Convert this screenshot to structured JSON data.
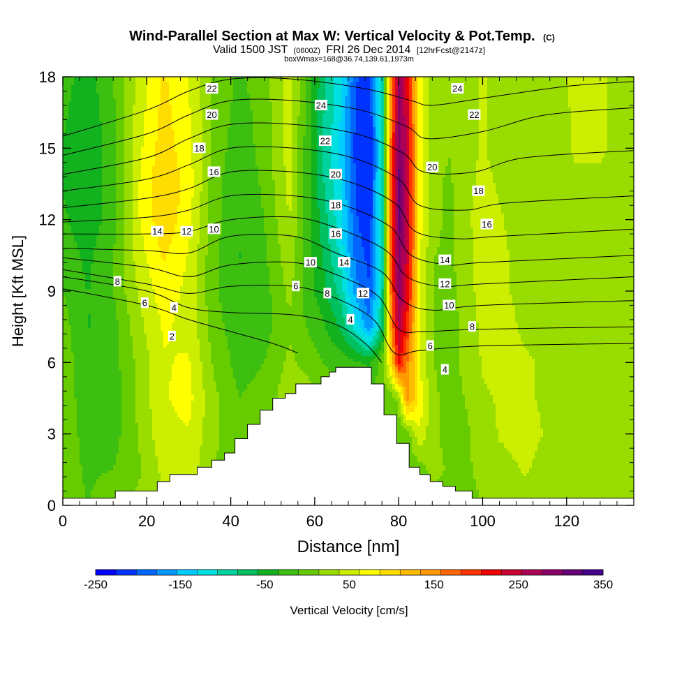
{
  "chart_data": {
    "type": "heatmap",
    "title": "Wind-Parallel Section at Max W: Vertical Velocity & Pot.Temp.",
    "title_unit": "(C)",
    "subtitle_valid": "Valid 1500 JST",
    "subtitle_utc": "(0600Z)",
    "subtitle_date": "FRI 26 Dec 2014",
    "subtitle_fcst": "[12hrFcst@2147z]",
    "subtitle_box": "boxWmax=168@36.74,139.61,1973m",
    "xlabel": "Distance [nm]",
    "ylabel": "Height [Kft MSL]",
    "xlim": [
      0,
      136
    ],
    "ylim": [
      0,
      18
    ],
    "x_ticks": [
      "0",
      "20",
      "40",
      "60",
      "80",
      "100",
      "120"
    ],
    "y_ticks": [
      "0",
      "3",
      "6",
      "9",
      "12",
      "15",
      "18"
    ],
    "colorbar": {
      "label": "Vertical Velocity [cm/s]",
      "range": [
        -250,
        350
      ],
      "tick_labels": [
        "-250",
        "-150",
        "-50",
        "50",
        "150",
        "250",
        "350"
      ],
      "colors": [
        "#0000ff",
        "#0033ff",
        "#0066ff",
        "#0099ff",
        "#00ccff",
        "#00e0e0",
        "#00d2a0",
        "#00c060",
        "#12b21e",
        "#3cbf10",
        "#66cc00",
        "#99dd00",
        "#ccee00",
        "#ffff00",
        "#ffdd00",
        "#ffbb00",
        "#ff9900",
        "#ff6600",
        "#ff3300",
        "#ee0000",
        "#cc0033",
        "#aa0055",
        "#880066",
        "#660077",
        "#440088"
      ]
    },
    "velocity_field": {
      "x": [
        0,
        6,
        12,
        18,
        24,
        30,
        36,
        42,
        48,
        54,
        58,
        62,
        66,
        70,
        73,
        76,
        78,
        80,
        82,
        85,
        88,
        92,
        96,
        100,
        104,
        110,
        116,
        122,
        128,
        136
      ],
      "y": [
        0,
        1.5,
        3,
        4.5,
        6,
        7.5,
        9,
        10.5,
        12,
        13.5,
        15,
        16.5,
        18
      ],
      "values": [
        [
          5,
          -10,
          10,
          20,
          35,
          30,
          10,
          -15,
          -20,
          10,
          10,
          0,
          0,
          0,
          0,
          0,
          0,
          0,
          0,
          0,
          0,
          0,
          5,
          15,
          25,
          30,
          25,
          25,
          25,
          15
        ],
        [
          5,
          -15,
          -10,
          10,
          45,
          50,
          15,
          -10,
          -15,
          15,
          20,
          0,
          0,
          0,
          0,
          0,
          0,
          0,
          0,
          0,
          25,
          10,
          10,
          20,
          30,
          40,
          30,
          25,
          25,
          20
        ],
        [
          5,
          -20,
          -20,
          15,
          55,
          60,
          20,
          -5,
          -10,
          20,
          25,
          0,
          0,
          0,
          0,
          0,
          0,
          0,
          0,
          60,
          20,
          5,
          10,
          25,
          40,
          45,
          35,
          25,
          30,
          25
        ],
        [
          5,
          -25,
          -25,
          20,
          60,
          70,
          20,
          -10,
          0,
          30,
          30,
          10,
          0,
          0,
          0,
          0,
          0,
          20,
          150,
          80,
          20,
          5,
          15,
          35,
          40,
          40,
          35,
          25,
          30,
          30
        ],
        [
          5,
          -30,
          -20,
          20,
          60,
          65,
          10,
          -20,
          -10,
          20,
          5,
          -10,
          -20,
          -30,
          -40,
          0,
          90,
          220,
          160,
          60,
          15,
          5,
          20,
          40,
          45,
          40,
          35,
          30,
          35,
          30
        ],
        [
          0,
          -35,
          -20,
          30,
          65,
          55,
          0,
          -25,
          -20,
          10,
          -10,
          -30,
          -60,
          -120,
          -170,
          -80,
          130,
          260,
          200,
          60,
          15,
          5,
          20,
          45,
          45,
          35,
          35,
          30,
          35,
          30
        ],
        [
          -10,
          -35,
          -10,
          40,
          75,
          55,
          -5,
          -30,
          -20,
          20,
          -20,
          -50,
          -90,
          -170,
          -200,
          -100,
          150,
          290,
          230,
          70,
          15,
          5,
          25,
          50,
          40,
          35,
          35,
          35,
          35,
          30
        ],
        [
          -20,
          -40,
          -10,
          50,
          90,
          60,
          -5,
          -35,
          -15,
          30,
          -20,
          -60,
          -110,
          -190,
          -210,
          -110,
          160,
          300,
          240,
          70,
          15,
          10,
          25,
          50,
          40,
          35,
          35,
          35,
          35,
          30
        ],
        [
          -30,
          -50,
          -20,
          60,
          105,
          70,
          0,
          -30,
          -10,
          40,
          -20,
          -70,
          -120,
          -200,
          -220,
          -110,
          160,
          310,
          250,
          70,
          20,
          10,
          30,
          55,
          40,
          30,
          30,
          35,
          35,
          30
        ],
        [
          -35,
          -55,
          -20,
          60,
          110,
          75,
          0,
          -30,
          -5,
          45,
          -20,
          -80,
          -125,
          -210,
          -220,
          -110,
          160,
          310,
          250,
          70,
          20,
          10,
          30,
          45,
          35,
          25,
          30,
          35,
          35,
          30
        ],
        [
          -35,
          -55,
          -20,
          55,
          100,
          70,
          5,
          -25,
          0,
          50,
          -20,
          -85,
          -130,
          -215,
          -225,
          -110,
          150,
          300,
          245,
          70,
          25,
          15,
          30,
          40,
          30,
          20,
          30,
          40,
          40,
          30
        ],
        [
          -30,
          -50,
          -15,
          50,
          95,
          65,
          10,
          -20,
          0,
          50,
          -15,
          -80,
          -125,
          -210,
          -220,
          -105,
          140,
          290,
          240,
          70,
          25,
          15,
          30,
          40,
          30,
          20,
          30,
          40,
          40,
          30
        ],
        [
          -25,
          -45,
          -10,
          45,
          90,
          60,
          10,
          -15,
          5,
          50,
          -10,
          -75,
          -120,
          -200,
          -210,
          -100,
          130,
          280,
          230,
          70,
          25,
          15,
          30,
          40,
          30,
          25,
          35,
          40,
          40,
          30
        ]
      ]
    },
    "terrain": {
      "x": [
        0,
        12.5,
        12.5,
        22.5,
        22.5,
        25.5,
        25.5,
        32,
        32,
        35.5,
        35.5,
        38.5,
        38.5,
        41,
        41,
        44,
        44,
        47,
        47,
        50,
        50,
        53,
        53,
        55.5,
        55.5,
        58.5,
        58.5,
        61.5,
        61.5,
        63.5,
        63.5,
        65,
        65,
        66.5,
        66.5,
        73.5,
        73.5,
        76.5,
        76.5,
        79.5,
        79.5,
        82.5,
        82.5,
        85,
        85,
        87.5,
        87.5,
        90.5,
        90.5,
        93.5,
        93.5,
        97.5,
        97.5,
        120,
        120,
        136
      ],
      "y": [
        0.3,
        0.3,
        0.6,
        0.6,
        1,
        1,
        1.3,
        1.3,
        1.6,
        1.6,
        1.9,
        1.9,
        2.2,
        2.2,
        2.8,
        2.8,
        3.4,
        3.4,
        4,
        4,
        4.5,
        4.5,
        4.7,
        4.7,
        5.1,
        5.1,
        5.1,
        5.1,
        5.4,
        5.4,
        5.6,
        5.6,
        5.8,
        5.8,
        5.8,
        5.8,
        5.1,
        5.1,
        3.8,
        3.8,
        2.6,
        2.6,
        1.6,
        1.6,
        1.3,
        1.3,
        1,
        1,
        0.8,
        0.8,
        0.6,
        0.6,
        0.3,
        0.3,
        0.3,
        0.3
      ]
    },
    "isentropes": [
      {
        "level": 2,
        "points": [
          [
            0,
            9.1
          ],
          [
            20,
            8.4
          ],
          [
            30,
            7.8
          ],
          [
            40,
            7.3
          ],
          [
            50,
            6.8
          ],
          [
            56,
            6.4
          ]
        ]
      },
      {
        "level": 4,
        "points": [
          [
            0,
            9.6
          ],
          [
            20,
            9.0
          ],
          [
            30,
            8.3
          ],
          [
            40,
            8.1
          ],
          [
            55,
            8.0
          ],
          [
            65,
            7.6
          ],
          [
            72,
            6.8
          ],
          [
            76,
            6.0
          ]
        ]
      },
      {
        "level": 6,
        "points": [
          [
            0,
            9.9
          ],
          [
            20,
            9.3
          ],
          [
            30,
            8.9
          ],
          [
            40,
            9.2
          ],
          [
            55,
            9.2
          ],
          [
            65,
            8.7
          ],
          [
            74,
            7.8
          ],
          [
            79,
            6.4
          ],
          [
            85,
            6.5
          ],
          [
            100,
            6.7
          ],
          [
            136,
            6.8
          ]
        ]
      },
      {
        "level": 8,
        "points": [
          [
            0,
            10.4
          ],
          [
            20,
            10.0
          ],
          [
            30,
            9.6
          ],
          [
            40,
            10.1
          ],
          [
            55,
            10.2
          ],
          [
            65,
            9.7
          ],
          [
            75,
            8.8
          ],
          [
            80,
            7.4
          ],
          [
            86,
            7.3
          ],
          [
            100,
            7.4
          ],
          [
            136,
            7.5
          ]
        ]
      },
      {
        "level": 10,
        "points": [
          [
            0,
            10.8
          ],
          [
            20,
            10.7
          ],
          [
            30,
            10.6
          ],
          [
            40,
            11.3
          ],
          [
            55,
            11.3
          ],
          [
            65,
            10.6
          ],
          [
            76,
            9.8
          ],
          [
            81,
            8.6
          ],
          [
            88,
            8.2
          ],
          [
            100,
            8.4
          ],
          [
            136,
            8.6
          ]
        ]
      },
      {
        "level": 12,
        "points": [
          [
            0,
            11.4
          ],
          [
            20,
            11.4
          ],
          [
            30,
            11.5
          ],
          [
            40,
            12.0
          ],
          [
            55,
            12.1
          ],
          [
            66,
            11.6
          ],
          [
            77,
            10.7
          ],
          [
            82,
            9.6
          ],
          [
            90,
            9.2
          ],
          [
            100,
            9.3
          ],
          [
            136,
            9.6
          ]
        ]
      },
      {
        "level": 14,
        "points": [
          [
            0,
            11.9
          ],
          [
            20,
            12.1
          ],
          [
            30,
            12.4
          ],
          [
            40,
            13.0
          ],
          [
            55,
            13.0
          ],
          [
            67,
            12.6
          ],
          [
            78,
            11.7
          ],
          [
            83,
            10.5
          ],
          [
            92,
            10.1
          ],
          [
            100,
            10.2
          ],
          [
            136,
            10.5
          ]
        ]
      },
      {
        "level": 16,
        "points": [
          [
            0,
            12.5
          ],
          [
            20,
            12.9
          ],
          [
            30,
            13.3
          ],
          [
            40,
            14.0
          ],
          [
            55,
            14.0
          ],
          [
            68,
            13.6
          ],
          [
            79,
            12.7
          ],
          [
            84,
            11.5
          ],
          [
            94,
            11.2
          ],
          [
            104,
            11.3
          ],
          [
            136,
            11.6
          ]
        ]
      },
      {
        "level": 18,
        "points": [
          [
            0,
            13.2
          ],
          [
            20,
            13.7
          ],
          [
            30,
            14.3
          ],
          [
            40,
            15.0
          ],
          [
            55,
            15.0
          ],
          [
            69,
            14.6
          ],
          [
            80,
            13.7
          ],
          [
            85,
            12.6
          ],
          [
            96,
            12.4
          ],
          [
            106,
            12.7
          ],
          [
            136,
            13.0
          ]
        ]
      },
      {
        "level": 20,
        "points": [
          [
            0,
            13.9
          ],
          [
            20,
            14.6
          ],
          [
            30,
            15.4
          ],
          [
            40,
            16.0
          ],
          [
            55,
            16.0
          ],
          [
            70,
            15.6
          ],
          [
            81,
            14.8
          ],
          [
            86,
            14.0
          ],
          [
            98,
            14.0
          ],
          [
            110,
            14.6
          ],
          [
            136,
            14.9
          ]
        ]
      },
      {
        "level": 22,
        "points": [
          [
            0,
            14.7
          ],
          [
            20,
            15.6
          ],
          [
            30,
            16.4
          ],
          [
            40,
            17.0
          ],
          [
            55,
            17.0
          ],
          [
            71,
            16.6
          ],
          [
            82,
            15.9
          ],
          [
            87,
            15.4
          ],
          [
            100,
            15.7
          ],
          [
            115,
            16.4
          ],
          [
            136,
            16.7
          ]
        ]
      },
      {
        "level": 24,
        "points": [
          [
            0,
            15.5
          ],
          [
            20,
            16.6
          ],
          [
            30,
            17.4
          ],
          [
            40,
            17.9
          ],
          [
            55,
            17.9
          ],
          [
            72,
            17.5
          ],
          [
            83,
            17.0
          ],
          [
            88,
            16.8
          ],
          [
            100,
            17.1
          ],
          [
            120,
            17.6
          ],
          [
            136,
            17.8
          ]
        ]
      }
    ],
    "contour_labels": [
      {
        "text": "22",
        "x": 35.5,
        "y": 17.5
      },
      {
        "text": "20",
        "x": 35.5,
        "y": 16.4
      },
      {
        "text": "18",
        "x": 32.5,
        "y": 15.0
      },
      {
        "text": "16",
        "x": 36.0,
        "y": 14.0
      },
      {
        "text": "14",
        "x": 22.5,
        "y": 11.5
      },
      {
        "text": "12",
        "x": 29.5,
        "y": 11.5
      },
      {
        "text": "10",
        "x": 36.0,
        "y": 11.6
      },
      {
        "text": "8",
        "x": 13.0,
        "y": 9.4
      },
      {
        "text": "6",
        "x": 19.5,
        "y": 8.5
      },
      {
        "text": "4",
        "x": 26.5,
        "y": 8.3
      },
      {
        "text": "2",
        "x": 26.0,
        "y": 7.1
      },
      {
        "text": "24",
        "x": 61.5,
        "y": 16.8
      },
      {
        "text": "22",
        "x": 62.5,
        "y": 15.3
      },
      {
        "text": "20",
        "x": 65.0,
        "y": 13.9
      },
      {
        "text": "18",
        "x": 65.0,
        "y": 12.6
      },
      {
        "text": "16",
        "x": 65.0,
        "y": 11.4
      },
      {
        "text": "14",
        "x": 67.0,
        "y": 10.2
      },
      {
        "text": "10",
        "x": 59.0,
        "y": 10.2
      },
      {
        "text": "6",
        "x": 55.5,
        "y": 9.2
      },
      {
        "text": "8",
        "x": 63.0,
        "y": 8.9
      },
      {
        "text": "12",
        "x": 71.5,
        "y": 8.9
      },
      {
        "text": "4",
        "x": 68.5,
        "y": 7.8
      },
      {
        "text": "24",
        "x": 94.0,
        "y": 17.5
      },
      {
        "text": "22",
        "x": 98.0,
        "y": 16.4
      },
      {
        "text": "20",
        "x": 88.0,
        "y": 14.2
      },
      {
        "text": "18",
        "x": 99.0,
        "y": 13.2
      },
      {
        "text": "16",
        "x": 101.0,
        "y": 11.8
      },
      {
        "text": "14",
        "x": 91.0,
        "y": 10.3
      },
      {
        "text": "12",
        "x": 91.0,
        "y": 9.3
      },
      {
        "text": "10",
        "x": 92.0,
        "y": 8.4
      },
      {
        "text": "8",
        "x": 97.5,
        "y": 7.5
      },
      {
        "text": "6",
        "x": 87.5,
        "y": 6.7
      },
      {
        "text": "4",
        "x": 91.0,
        "y": 5.7
      }
    ]
  }
}
